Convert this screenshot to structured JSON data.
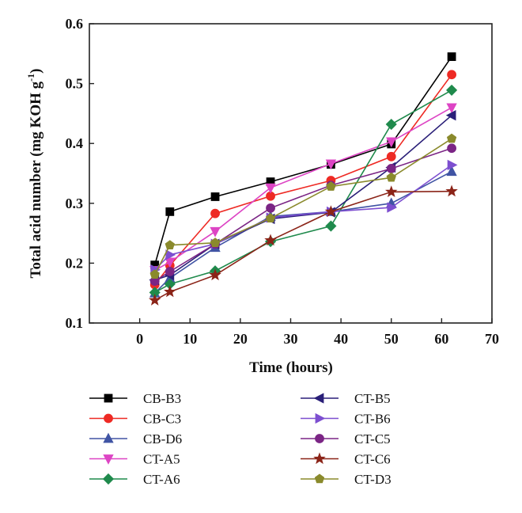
{
  "chart_data": {
    "type": "line",
    "xlabel": "Time (hours)",
    "ylabel_main": "Total acid number (mg KOH g",
    "ylabel_sup": "-1",
    "ylabel_tail": ")",
    "xlim": [
      -10,
      70
    ],
    "ylim": [
      0.1,
      0.6
    ],
    "xticks": [
      0,
      10,
      20,
      30,
      40,
      50,
      60,
      70
    ],
    "xtick_labels": [
      "0",
      "10",
      "20",
      "30",
      "40",
      "50",
      "60",
      "70"
    ],
    "yticks": [
      0.1,
      0.2,
      0.3,
      0.4,
      0.5,
      0.6
    ],
    "ytick_labels": [
      "0.1",
      "0.2",
      "0.3",
      "0.4",
      "0.5",
      "0.6"
    ],
    "grid": false,
    "legend_position": "bottom",
    "x": [
      3,
      6,
      15,
      26,
      38,
      50,
      62
    ],
    "series": [
      {
        "name": "CB-B3",
        "color": "#000000",
        "marker": "square",
        "values": [
          0.197,
          0.286,
          0.311,
          0.336,
          0.365,
          0.399,
          0.545
        ]
      },
      {
        "name": "CB-C3",
        "color": "#ee2a24",
        "marker": "circle",
        "values": [
          0.164,
          0.196,
          0.283,
          0.312,
          0.338,
          0.378,
          0.515
        ]
      },
      {
        "name": "CB-D6",
        "color": "#4054a4",
        "marker": "triangle-up",
        "values": [
          0.15,
          0.175,
          0.226,
          0.278,
          0.286,
          0.3,
          0.353
        ]
      },
      {
        "name": "CT-A5",
        "color": "#dd44c4",
        "marker": "triangle-down",
        "values": [
          0.188,
          0.202,
          0.253,
          0.326,
          0.366,
          0.403,
          0.46
        ]
      },
      {
        "name": "CT-A6",
        "color": "#1f8a4c",
        "marker": "diamond",
        "values": [
          0.151,
          0.165,
          0.187,
          0.236,
          0.262,
          0.432,
          0.489
        ]
      },
      {
        "name": "CT-B5",
        "color": "#2a1f78",
        "marker": "triangle-left",
        "values": [
          0.172,
          0.18,
          0.232,
          0.274,
          0.285,
          0.36,
          0.447
        ]
      },
      {
        "name": "CT-B6",
        "color": "#7d4fd0",
        "marker": "triangle-right",
        "values": [
          0.189,
          0.214,
          0.232,
          0.276,
          0.286,
          0.293,
          0.364
        ]
      },
      {
        "name": "CT-C5",
        "color": "#7b2585",
        "marker": "circle",
        "values": [
          0.17,
          0.186,
          0.232,
          0.292,
          0.33,
          0.358,
          0.392
        ]
      },
      {
        "name": "CT-C6",
        "color": "#8b2418",
        "marker": "star",
        "values": [
          0.138,
          0.152,
          0.18,
          0.238,
          0.286,
          0.319,
          0.32
        ]
      },
      {
        "name": "CT-D3",
        "color": "#8a8a2c",
        "marker": "pentagon",
        "values": [
          0.181,
          0.23,
          0.234,
          0.275,
          0.328,
          0.343,
          0.408
        ]
      }
    ]
  }
}
